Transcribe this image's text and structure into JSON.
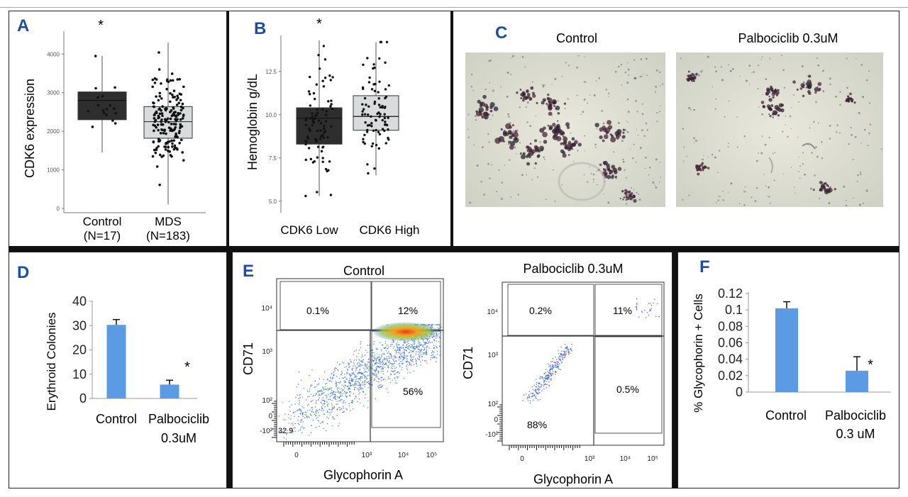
{
  "colors": {
    "accent_bar": "#5b9be3",
    "panel_label": "#1f4e9e",
    "dark_box": "#2e2e2e",
    "light_box": "#d9dcdc"
  },
  "panels": {
    "A": {
      "label": "A",
      "ylabel": "CDK6 expression",
      "ylim": [
        0,
        4300
      ],
      "yticks": [
        "0",
        "1000",
        "2000",
        "3000",
        "4000"
      ],
      "groups": [
        {
          "name": "Control",
          "n": "(N=17)",
          "q1": 2300,
          "median": 2800,
          "q3": 3020,
          "whisker_low": 1450,
          "whisker_high": 3950,
          "points": 17
        },
        {
          "name": "MDS",
          "n": "(N=183)",
          "q1": 1820,
          "median": 2250,
          "q3": 2640,
          "whisker_low": 100,
          "whisker_high": 4300,
          "points": 183
        }
      ],
      "significance": "*"
    },
    "B": {
      "label": "B",
      "ylabel": "Hemoglobin g/dL",
      "ylim": [
        4.5,
        14.5
      ],
      "yticks": [
        "5.0",
        "7.5",
        "10.0",
        "12.5"
      ],
      "groups": [
        {
          "name": "CDK6 Low",
          "q1": 8.3,
          "median": 9.8,
          "q3": 10.4,
          "whisker_low": 5.3,
          "whisker_high": 14.3
        },
        {
          "name": "CDK6 High",
          "q1": 9.1,
          "median": 9.9,
          "q3": 11.1,
          "whisker_low": 6.5,
          "whisker_high": 14.2
        }
      ],
      "significance": "*"
    },
    "C": {
      "label": "C",
      "images": [
        {
          "title": "Control",
          "description": "Erythroid colony micrograph"
        },
        {
          "title": "Palbociclib 0.3uM",
          "description": "Erythroid colony micrograph"
        }
      ]
    },
    "D": {
      "label": "D",
      "ylabel": "Erythroid Colonies",
      "yticks": [
        "0",
        "10",
        "20",
        "30",
        "40"
      ],
      "ylim": [
        0,
        40
      ],
      "categories": [
        "Control",
        "Palbociclib"
      ],
      "category_sub": [
        "",
        "0.3uM"
      ],
      "values": [
        30.3,
        5.7
      ],
      "errors": [
        2.2,
        1.8
      ],
      "significance": "*"
    },
    "E": {
      "label": "E",
      "xlabel": "Glycophorin A",
      "ylabel": "CD71",
      "plots": [
        {
          "title": "Control",
          "q_ul": "0.1%",
          "q_ur": "12%",
          "q_lr": "56%",
          "q_ll": "32.9",
          "xticks": [
            "0",
            "10³",
            "10⁴",
            "10⁵"
          ],
          "yticks": [
            "10⁴",
            "10³",
            "10²",
            "0",
            "-10²"
          ]
        },
        {
          "title": "Palbociclib 0.3uM",
          "q_ul": "0.2%",
          "q_ur": "11%",
          "q_lr": "0.5%",
          "q_ll": "88%",
          "xticks": [
            "0",
            "10³",
            "10⁴",
            "10⁵"
          ],
          "yticks": [
            "10⁴",
            "10³",
            "10²",
            "0",
            "-10²"
          ]
        }
      ]
    },
    "F": {
      "label": "F",
      "ylabel": "% Glycophorin + Cells",
      "yticks": [
        "0",
        "0.02",
        "0.04",
        "0.06",
        "0.08",
        "0.1",
        "0.12"
      ],
      "ylim": [
        0,
        0.12
      ],
      "categories": [
        "Control",
        "Palbociclib"
      ],
      "category_sub": [
        "",
        "0.3 uM"
      ],
      "values": [
        0.102,
        0.026
      ],
      "errors": [
        0.008,
        0.017
      ],
      "significance": "*"
    }
  },
  "chart_data": [
    {
      "type": "box",
      "panel": "A",
      "title": "",
      "ylabel": "CDK6 expression",
      "categories": [
        "Control (N=17)",
        "MDS (N=183)"
      ],
      "medians": [
        2800,
        2250
      ],
      "q1": [
        2300,
        1820
      ],
      "q3": [
        3020,
        2640
      ],
      "ylim": [
        0,
        4300
      ]
    },
    {
      "type": "box",
      "panel": "B",
      "title": "",
      "ylabel": "Hemoglobin g/dL",
      "categories": [
        "CDK6 Low",
        "CDK6 High"
      ],
      "medians": [
        9.8,
        9.9
      ],
      "q1": [
        8.3,
        9.1
      ],
      "q3": [
        10.4,
        11.1
      ],
      "ylim": [
        4.5,
        14.5
      ]
    },
    {
      "type": "bar",
      "panel": "D",
      "ylabel": "Erythroid Colonies",
      "categories": [
        "Control",
        "Palbociclib 0.3uM"
      ],
      "values": [
        30.3,
        5.7
      ],
      "ylim": [
        0,
        40
      ]
    },
    {
      "type": "scatter",
      "panel": "E",
      "xlabel": "Glycophorin A",
      "ylabel": "CD71",
      "series": [
        {
          "name": "Control",
          "quadrants": {
            "upper_left": "0.1%",
            "upper_right": "12%",
            "lower_right": "56%",
            "lower_left": "32.9"
          }
        },
        {
          "name": "Palbociclib 0.3uM",
          "quadrants": {
            "upper_left": "0.2%",
            "upper_right": "11%",
            "lower_right": "0.5%",
            "lower_left": "88%"
          }
        }
      ]
    },
    {
      "type": "bar",
      "panel": "F",
      "ylabel": "% Glycophorin + Cells",
      "categories": [
        "Control",
        "Palbociclib 0.3 uM"
      ],
      "values": [
        0.102,
        0.026
      ],
      "ylim": [
        0,
        0.12
      ]
    }
  ]
}
